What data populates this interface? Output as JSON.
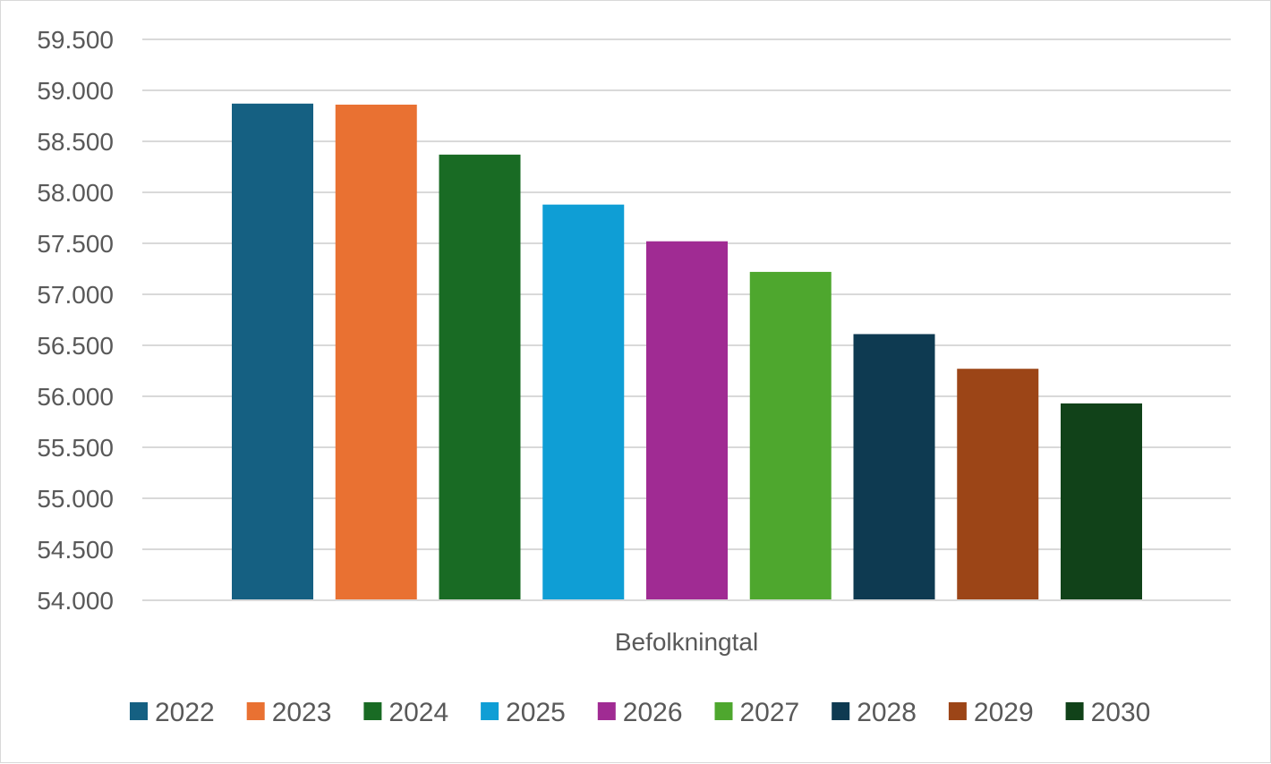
{
  "chart_data": {
    "type": "bar",
    "categories": [
      "Befolkningtal"
    ],
    "series": [
      {
        "name": "2022",
        "values": [
          58870
        ],
        "color": "#156082"
      },
      {
        "name": "2023",
        "values": [
          58860
        ],
        "color": "#E97132"
      },
      {
        "name": "2024",
        "values": [
          58370
        ],
        "color": "#196B24"
      },
      {
        "name": "2025",
        "values": [
          57880
        ],
        "color": "#0F9ED5"
      },
      {
        "name": "2026",
        "values": [
          57520
        ],
        "color": "#A02B93"
      },
      {
        "name": "2027",
        "values": [
          57220
        ],
        "color": "#4EA72E"
      },
      {
        "name": "2028",
        "values": [
          56610
        ],
        "color": "#0E3A51"
      },
      {
        "name": "2029",
        "values": [
          56270
        ],
        "color": "#9C4517"
      },
      {
        "name": "2030",
        "values": [
          55930
        ],
        "color": "#114219"
      }
    ],
    "ylim": [
      54000,
      59500
    ],
    "y_ticks": [
      "54.000",
      "54.500",
      "55.000",
      "55.500",
      "56.000",
      "56.500",
      "57.000",
      "57.500",
      "58.000",
      "58.500",
      "59.000",
      "59.500"
    ],
    "title": "",
    "xlabel": "",
    "ylabel": "",
    "grid": true,
    "legend": "bottom"
  }
}
